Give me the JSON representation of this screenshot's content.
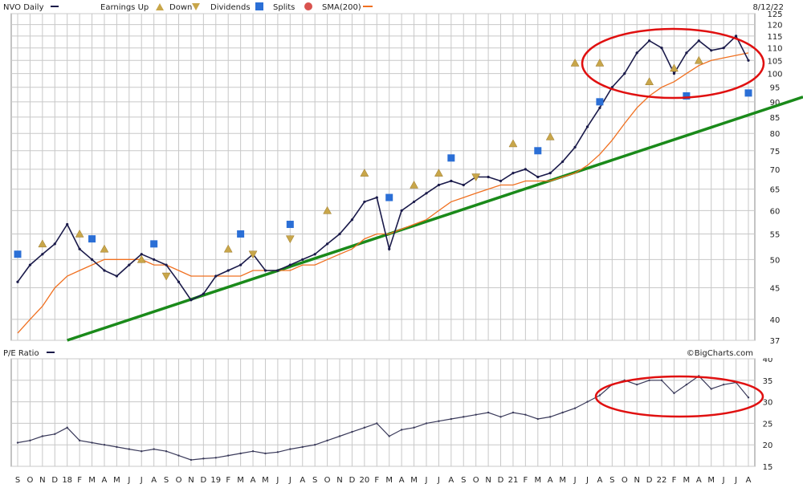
{
  "header": {
    "symbol": "NVO Daily",
    "legend": [
      {
        "label": "Earnings Up",
        "icon": "earnings-up-icon",
        "color": "#c8a64a"
      },
      {
        "label": "Down",
        "icon": "earnings-down-icon",
        "color": "#c8a64a"
      },
      {
        "label": "Dividends",
        "icon": "dividend-icon",
        "color": "#2b6fd6"
      },
      {
        "label": "Splits",
        "icon": "split-icon",
        "color": "#d9534f"
      },
      {
        "label": "SMA(200)",
        "icon": "sma-line-icon",
        "color": "#f07020"
      }
    ],
    "date": "8/12/22"
  },
  "lower_panel": {
    "title": "P/E Ratio",
    "credit": "©BigCharts.com"
  },
  "colors": {
    "price": "#1a1a4a",
    "sma": "#f07020",
    "trendline": "#1a8a1a",
    "highlight": "#e01010",
    "grid": "#c8c8c8"
  },
  "chart_data": [
    {
      "type": "line",
      "title": "NVO Daily",
      "y_scale": "log",
      "ylim": [
        37,
        125
      ],
      "ytick_labels": [
        "125",
        "120",
        "115",
        "110",
        "105",
        "100",
        "95",
        "90",
        "85",
        "80",
        "75",
        "70",
        "65",
        "60",
        "55",
        "50",
        "45",
        "40",
        "37"
      ],
      "x": [
        "2017-09",
        "2017-10",
        "2017-11",
        "2017-12",
        "2018-01",
        "2018-02",
        "2018-03",
        "2018-04",
        "2018-05",
        "2018-06",
        "2018-07",
        "2018-08",
        "2018-09",
        "2018-10",
        "2018-11",
        "2018-12",
        "2019-01",
        "2019-02",
        "2019-03",
        "2019-04",
        "2019-05",
        "2019-06",
        "2019-07",
        "2019-08",
        "2019-09",
        "2019-10",
        "2019-11",
        "2019-12",
        "2020-01",
        "2020-02",
        "2020-03",
        "2020-04",
        "2020-05",
        "2020-06",
        "2020-07",
        "2020-08",
        "2020-09",
        "2020-10",
        "2020-11",
        "2020-12",
        "2021-01",
        "2021-02",
        "2021-03",
        "2021-04",
        "2021-05",
        "2021-06",
        "2021-07",
        "2021-08",
        "2021-09",
        "2021-10",
        "2021-11",
        "2021-12",
        "2022-01",
        "2022-02",
        "2022-03",
        "2022-04",
        "2022-05",
        "2022-06",
        "2022-07",
        "2022-08"
      ],
      "xtick_labels": [
        "S",
        "O",
        "N",
        "D",
        "18",
        "F",
        "M",
        "A",
        "M",
        "J",
        "J",
        "A",
        "S",
        "O",
        "N",
        "D",
        "19",
        "F",
        "M",
        "A",
        "M",
        "J",
        "J",
        "A",
        "S",
        "O",
        "N",
        "D",
        "20",
        "F",
        "M",
        "A",
        "M",
        "J",
        "J",
        "A",
        "S",
        "O",
        "N",
        "D",
        "21",
        "F",
        "M",
        "A",
        "M",
        "J",
        "J",
        "A",
        "S",
        "O",
        "N",
        "D",
        "22",
        "F",
        "M",
        "A",
        "M",
        "J",
        "J",
        "A"
      ],
      "series": [
        {
          "name": "NVO Daily",
          "values": [
            46,
            49,
            51,
            53,
            57,
            52,
            50,
            48,
            47,
            49,
            51,
            50,
            49,
            46,
            43,
            44,
            47,
            48,
            49,
            51,
            48,
            48,
            49,
            50,
            51,
            53,
            55,
            58,
            62,
            63,
            52,
            60,
            62,
            64,
            66,
            67,
            66,
            68,
            68,
            67,
            69,
            70,
            68,
            69,
            72,
            76,
            82,
            88,
            95,
            100,
            108,
            113,
            110,
            100,
            108,
            113,
            109,
            110,
            115,
            105
          ]
        },
        {
          "name": "SMA(200)",
          "values": [
            38,
            40,
            42,
            45,
            47,
            48,
            49,
            50,
            50,
            50,
            50,
            49,
            49,
            48,
            47,
            47,
            47,
            47,
            47,
            48,
            48,
            48,
            48,
            49,
            49,
            50,
            51,
            52,
            54,
            55,
            55,
            56,
            57,
            58,
            60,
            62,
            63,
            64,
            65,
            66,
            66,
            67,
            67,
            67,
            68,
            69,
            71,
            74,
            78,
            83,
            88,
            92,
            95,
            97,
            100,
            103,
            105,
            106,
            107,
            108
          ]
        }
      ],
      "trendline": {
        "from": [
          "2018-01",
          37
        ],
        "to": [
          "2022-09",
          90
        ]
      },
      "earnings_markers": [
        {
          "x": "2017-11",
          "y": 53,
          "dir": "up"
        },
        {
          "x": "2018-02",
          "y": 55,
          "dir": "up"
        },
        {
          "x": "2018-04",
          "y": 52,
          "dir": "up"
        },
        {
          "x": "2018-07",
          "y": 50,
          "dir": "up"
        },
        {
          "x": "2018-09",
          "y": 47,
          "dir": "down"
        },
        {
          "x": "2019-02",
          "y": 52,
          "dir": "up"
        },
        {
          "x": "2019-04",
          "y": 51,
          "dir": "down"
        },
        {
          "x": "2019-07",
          "y": 54,
          "dir": "down"
        },
        {
          "x": "2019-10",
          "y": 60,
          "dir": "up"
        },
        {
          "x": "2020-01",
          "y": 69,
          "dir": "up"
        },
        {
          "x": "2020-05",
          "y": 66,
          "dir": "up"
        },
        {
          "x": "2020-07",
          "y": 69,
          "dir": "up"
        },
        {
          "x": "2020-10",
          "y": 68,
          "dir": "down"
        },
        {
          "x": "2021-01",
          "y": 77,
          "dir": "up"
        },
        {
          "x": "2021-04",
          "y": 79,
          "dir": "up"
        },
        {
          "x": "2021-06",
          "y": 104,
          "dir": "up"
        },
        {
          "x": "2021-08",
          "y": 104,
          "dir": "up"
        },
        {
          "x": "2021-12",
          "y": 97,
          "dir": "up"
        },
        {
          "x": "2022-02",
          "y": 102,
          "dir": "up"
        },
        {
          "x": "2022-04",
          "y": 105,
          "dir": "up"
        }
      ],
      "dividend_markers": [
        {
          "x": "2017-09",
          "y": 51
        },
        {
          "x": "2018-03",
          "y": 54
        },
        {
          "x": "2018-08",
          "y": 53
        },
        {
          "x": "2019-03",
          "y": 55
        },
        {
          "x": "2019-07",
          "y": 57
        },
        {
          "x": "2020-03",
          "y": 63
        },
        {
          "x": "2020-08",
          "y": 73
        },
        {
          "x": "2021-03",
          "y": 75
        },
        {
          "x": "2021-08",
          "y": 90
        },
        {
          "x": "2022-03",
          "y": 92
        },
        {
          "x": "2022-08",
          "y": 93
        }
      ],
      "highlight": "ellipse"
    },
    {
      "type": "line",
      "title": "P/E Ratio",
      "ylim": [
        15,
        40
      ],
      "ytick_labels": [
        "40",
        "35",
        "30",
        "25",
        "20",
        "15"
      ],
      "x": [
        "2017-09",
        "2017-10",
        "2017-11",
        "2017-12",
        "2018-01",
        "2018-02",
        "2018-03",
        "2018-04",
        "2018-05",
        "2018-06",
        "2018-07",
        "2018-08",
        "2018-09",
        "2018-10",
        "2018-11",
        "2018-12",
        "2019-01",
        "2019-02",
        "2019-03",
        "2019-04",
        "2019-05",
        "2019-06",
        "2019-07",
        "2019-08",
        "2019-09",
        "2019-10",
        "2019-11",
        "2019-12",
        "2020-01",
        "2020-02",
        "2020-03",
        "2020-04",
        "2020-05",
        "2020-06",
        "2020-07",
        "2020-08",
        "2020-09",
        "2020-10",
        "2020-11",
        "2020-12",
        "2021-01",
        "2021-02",
        "2021-03",
        "2021-04",
        "2021-05",
        "2021-06",
        "2021-07",
        "2021-08",
        "2021-09",
        "2021-10",
        "2021-11",
        "2021-12",
        "2022-01",
        "2022-02",
        "2022-03",
        "2022-04",
        "2022-05",
        "2022-06",
        "2022-07",
        "2022-08"
      ],
      "series": [
        {
          "name": "P/E Ratio",
          "values": [
            20.5,
            21,
            22,
            22.5,
            24,
            21,
            20.5,
            20,
            19.5,
            19,
            18.5,
            19,
            18.5,
            17.5,
            16.5,
            16.8,
            17,
            17.5,
            18,
            18.5,
            18,
            18.3,
            19,
            19.5,
            20,
            21,
            22,
            23,
            24,
            25,
            22,
            23.5,
            24,
            25,
            25.5,
            26,
            26.5,
            27,
            27.5,
            26.5,
            27.5,
            27,
            26,
            26.5,
            27.5,
            28.5,
            30,
            31.5,
            34,
            35,
            34,
            35,
            35,
            32,
            34,
            36,
            33,
            34,
            34.5,
            31
          ]
        }
      ],
      "highlight": "ellipse"
    }
  ]
}
